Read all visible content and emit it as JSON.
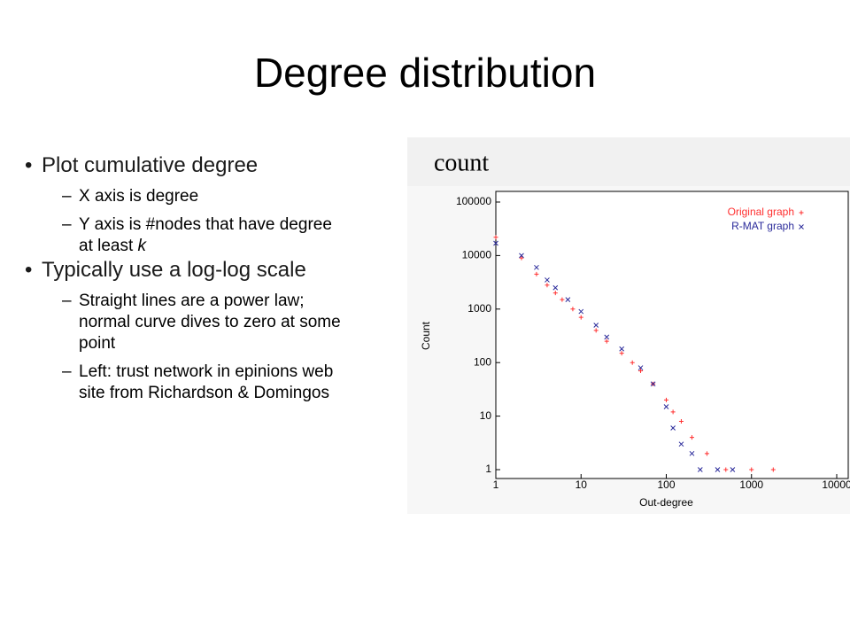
{
  "slide": {
    "title": "Degree distribution",
    "bullets": [
      {
        "text": "Plot cumulative degree",
        "sub": [
          {
            "text": "X axis is degree"
          },
          {
            "text": "Y axis is #nodes that have degree at least",
            "em": "k"
          }
        ]
      },
      {
        "text": "Typically use a log-log scale",
        "sub": [
          {
            "text": "Straight lines are a power law; normal curve dives to zero at some point"
          },
          {
            "text": "Left: trust network in epinions web site from Richardson & Domingos"
          }
        ]
      }
    ]
  },
  "chart_data": {
    "type": "scatter",
    "annotation": "count",
    "x_label": "Out-degree",
    "y_label": "Count",
    "log_x": true,
    "log_y": true,
    "xlim": [
      1,
      10000
    ],
    "ylim": [
      1,
      100000
    ],
    "xticks": [
      1,
      10,
      100,
      1000,
      10000
    ],
    "yticks": [
      1,
      10,
      100,
      1000,
      10000,
      100000
    ],
    "legend": "top-right",
    "series": [
      {
        "name": "Original graph",
        "color": "#ff3030",
        "marker": "plus",
        "x": [
          1,
          2,
          3,
          4,
          5,
          6,
          8,
          10,
          15,
          20,
          30,
          40,
          50,
          70,
          100,
          120,
          150,
          200,
          300,
          500,
          1000,
          1800
        ],
        "values": [
          22000,
          9000,
          4500,
          2800,
          2000,
          1500,
          1000,
          700,
          400,
          250,
          150,
          100,
          70,
          40,
          20,
          12,
          8,
          4,
          2,
          1,
          1,
          1
        ]
      },
      {
        "name": "R-MAT graph",
        "color": "#2a2a9a",
        "marker": "cross",
        "x": [
          1,
          2,
          3,
          4,
          5,
          7,
          10,
          15,
          20,
          30,
          50,
          70,
          100,
          120,
          150,
          200,
          250,
          400,
          600
        ],
        "values": [
          17000,
          10000,
          6000,
          3500,
          2500,
          1500,
          900,
          500,
          300,
          180,
          80,
          40,
          15,
          6,
          3,
          2,
          1,
          1,
          1
        ]
      }
    ]
  }
}
